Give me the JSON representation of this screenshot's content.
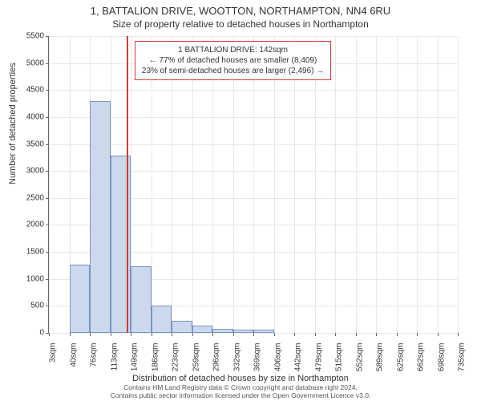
{
  "title_main": "1, BATTALION DRIVE, WOOTTON, NORTHAMPTON, NN4 6RU",
  "title_sub": "Size of property relative to detached houses in Northampton",
  "ylabel": "Number of detached properties",
  "xlabel": "Distribution of detached houses by size in Northampton",
  "chart": {
    "type": "histogram",
    "ylim": [
      0,
      5500
    ],
    "yticks": [
      0,
      500,
      1000,
      1500,
      2000,
      2500,
      3000,
      3500,
      4000,
      4500,
      5000,
      5500
    ],
    "xticks": [
      "3sqm",
      "40sqm",
      "76sqm",
      "113sqm",
      "149sqm",
      "186sqm",
      "223sqm",
      "259sqm",
      "296sqm",
      "332sqm",
      "369sqm",
      "406sqm",
      "442sqm",
      "479sqm",
      "515sqm",
      "552sqm",
      "589sqm",
      "625sqm",
      "662sqm",
      "698sqm",
      "735sqm"
    ],
    "values": [
      0,
      1260,
      4300,
      3290,
      1240,
      510,
      220,
      130,
      80,
      60,
      60,
      0,
      0,
      0,
      0,
      0,
      0,
      0,
      0,
      0
    ],
    "bar_color": "#ccd9ed",
    "bar_border": "#7a93c2",
    "grid_color": "#e8e8e8",
    "axis_color": "#666666",
    "background": "#ffffff",
    "bar_width_ratio": 1.0
  },
  "marker": {
    "value_sqm": 142,
    "x_position": 3.8,
    "color": "#d93838"
  },
  "annotation": {
    "line1": "1 BATTALION DRIVE: 142sqm",
    "line2": "← 77% of detached houses are smaller (8,409)",
    "line3": "23% of semi-detached houses are larger (2,496) →",
    "border_color": "#d93838",
    "background": "#ffffff",
    "fontsize": 10
  },
  "footer": {
    "line1": "Contains HM Land Registry data © Crown copyright and database right 2024.",
    "line2": "Contains public sector information licensed under the Open Government Licence v3.0."
  }
}
